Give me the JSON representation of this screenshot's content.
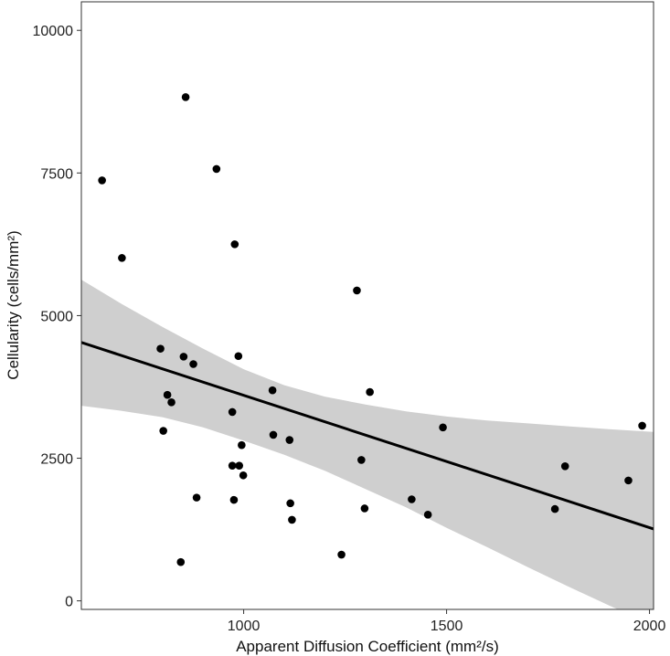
{
  "chart_data": {
    "type": "scatter",
    "xlabel": "Apparent Diffusion Coefficient (mm²/s)",
    "ylabel": "Cellularity (cells/mm²)",
    "xlim": [
      600,
      2010
    ],
    "ylim": [
      -150,
      10500
    ],
    "x_ticks": [
      1000,
      1500,
      2000
    ],
    "y_ticks": [
      0,
      2500,
      5000,
      7500,
      10000
    ],
    "x_tick_labels": [
      "1000",
      "1500",
      "2000"
    ],
    "y_tick_labels": [
      "0",
      "2500",
      "5000",
      "7500",
      "10000"
    ],
    "grid": false,
    "points": [
      {
        "x": 651,
        "y": 7370
      },
      {
        "x": 700,
        "y": 6010
      },
      {
        "x": 795,
        "y": 4420
      },
      {
        "x": 802,
        "y": 2980
      },
      {
        "x": 812,
        "y": 3610
      },
      {
        "x": 822,
        "y": 3480
      },
      {
        "x": 845,
        "y": 680
      },
      {
        "x": 852,
        "y": 4280
      },
      {
        "x": 857,
        "y": 8830
      },
      {
        "x": 876,
        "y": 4150
      },
      {
        "x": 884,
        "y": 1810
      },
      {
        "x": 933,
        "y": 7570
      },
      {
        "x": 972,
        "y": 3310
      },
      {
        "x": 972,
        "y": 2370
      },
      {
        "x": 976,
        "y": 1770
      },
      {
        "x": 978,
        "y": 6250
      },
      {
        "x": 987,
        "y": 4290
      },
      {
        "x": 989,
        "y": 2370
      },
      {
        "x": 995,
        "y": 2730
      },
      {
        "x": 999,
        "y": 2200
      },
      {
        "x": 1071,
        "y": 3690
      },
      {
        "x": 1073,
        "y": 2910
      },
      {
        "x": 1113,
        "y": 2820
      },
      {
        "x": 1115,
        "y": 1710
      },
      {
        "x": 1119,
        "y": 1420
      },
      {
        "x": 1241,
        "y": 810
      },
      {
        "x": 1279,
        "y": 5440
      },
      {
        "x": 1290,
        "y": 2470
      },
      {
        "x": 1298,
        "y": 1620
      },
      {
        "x": 1311,
        "y": 3660
      },
      {
        "x": 1414,
        "y": 1780
      },
      {
        "x": 1454,
        "y": 1510
      },
      {
        "x": 1491,
        "y": 3040
      },
      {
        "x": 1767,
        "y": 1610
      },
      {
        "x": 1792,
        "y": 2360
      },
      {
        "x": 1948,
        "y": 2110
      },
      {
        "x": 1982,
        "y": 3070
      }
    ],
    "fit_line": {
      "x": [
        600,
        2010
      ],
      "y": [
        4530,
        1260
      ]
    },
    "confidence_band": {
      "x": [
        600,
        700,
        800,
        900,
        1000,
        1100,
        1200,
        1300,
        1400,
        1500,
        1600,
        1700,
        1800,
        1900,
        2010
      ],
      "upper": [
        5630,
        5200,
        4800,
        4420,
        4060,
        3780,
        3580,
        3440,
        3320,
        3230,
        3160,
        3110,
        3060,
        3010,
        2960
      ],
      "lower": [
        3420,
        3330,
        3220,
        3040,
        2810,
        2560,
        2280,
        1960,
        1640,
        1280,
        940,
        590,
        250,
        -80,
        -430
      ]
    },
    "colors": {
      "points": "#000000",
      "line": "#000000",
      "band": "#cfcfcf",
      "frame": "#333333"
    }
  }
}
